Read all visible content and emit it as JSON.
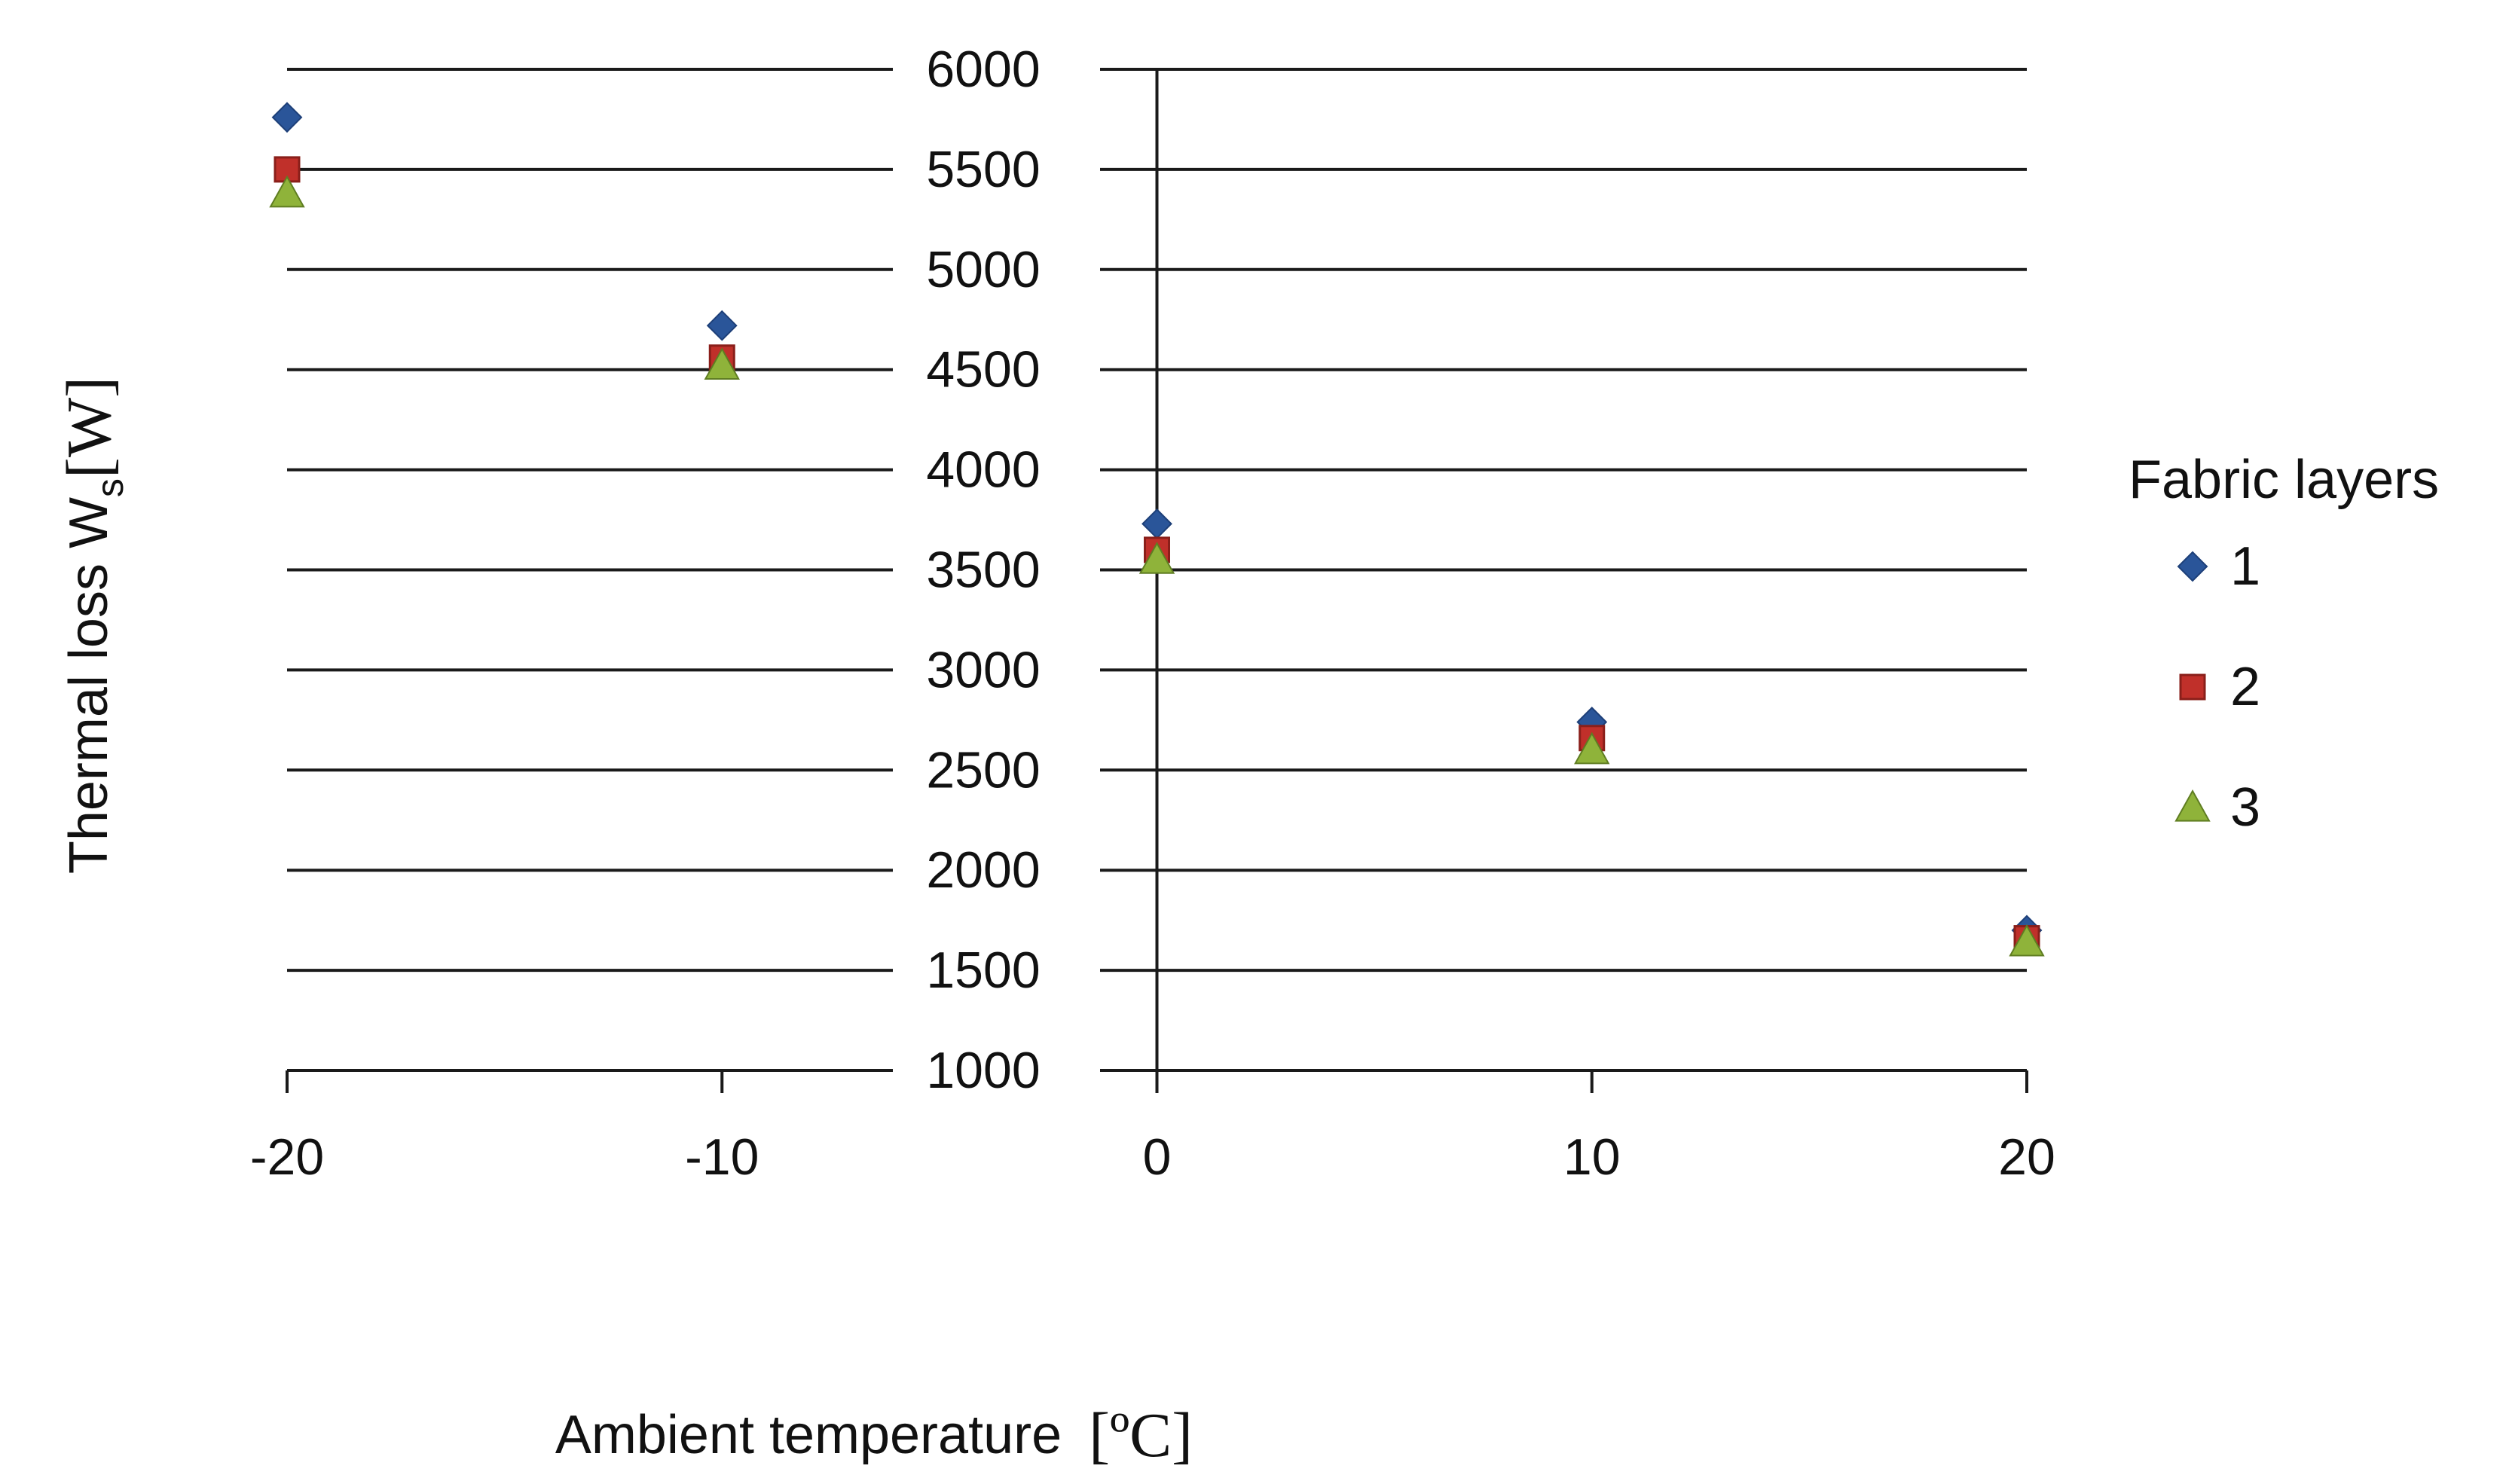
{
  "chart_data": {
    "type": "scatter",
    "title": "",
    "xlabel": "Ambient temperature",
    "xlabel_unit": "[ºC]",
    "ylabel": "Thermal loss  W",
    "ylabel_subscript": "s",
    "ylabel_unit": "[W]",
    "x_ticks": [
      "-20",
      "-10",
      "0",
      "10",
      "20"
    ],
    "y_ticks": [
      "1000",
      "1500",
      "2000",
      "2500",
      "3000",
      "3500",
      "4000",
      "4500",
      "5000",
      "5500",
      "6000"
    ],
    "xlim": [
      -20,
      20
    ],
    "ylim": [
      1000,
      6000
    ],
    "grid": "horizontal",
    "legend_title": "Fabric layers",
    "legend_position": "right",
    "series": [
      {
        "name": "1",
        "marker": "diamond",
        "color": "#2a5599",
        "points": [
          {
            "x": -20,
            "y": 5760
          },
          {
            "x": -10,
            "y": 4720
          },
          {
            "x": 0,
            "y": 3730
          },
          {
            "x": 10,
            "y": 2740
          },
          {
            "x": 20,
            "y": 1700
          }
        ]
      },
      {
        "name": "2",
        "marker": "square",
        "color": "#c0302a",
        "points": [
          {
            "x": -20,
            "y": 5500
          },
          {
            "x": -10,
            "y": 4560
          },
          {
            "x": 0,
            "y": 3600
          },
          {
            "x": 10,
            "y": 2660
          },
          {
            "x": 20,
            "y": 1660
          }
        ]
      },
      {
        "name": "3",
        "marker": "triangle",
        "color": "#8fb33a",
        "points": [
          {
            "x": -20,
            "y": 5380
          },
          {
            "x": -10,
            "y": 4520
          },
          {
            "x": 0,
            "y": 3550
          },
          {
            "x": 10,
            "y": 2600
          },
          {
            "x": 20,
            "y": 1640
          }
        ]
      }
    ]
  }
}
